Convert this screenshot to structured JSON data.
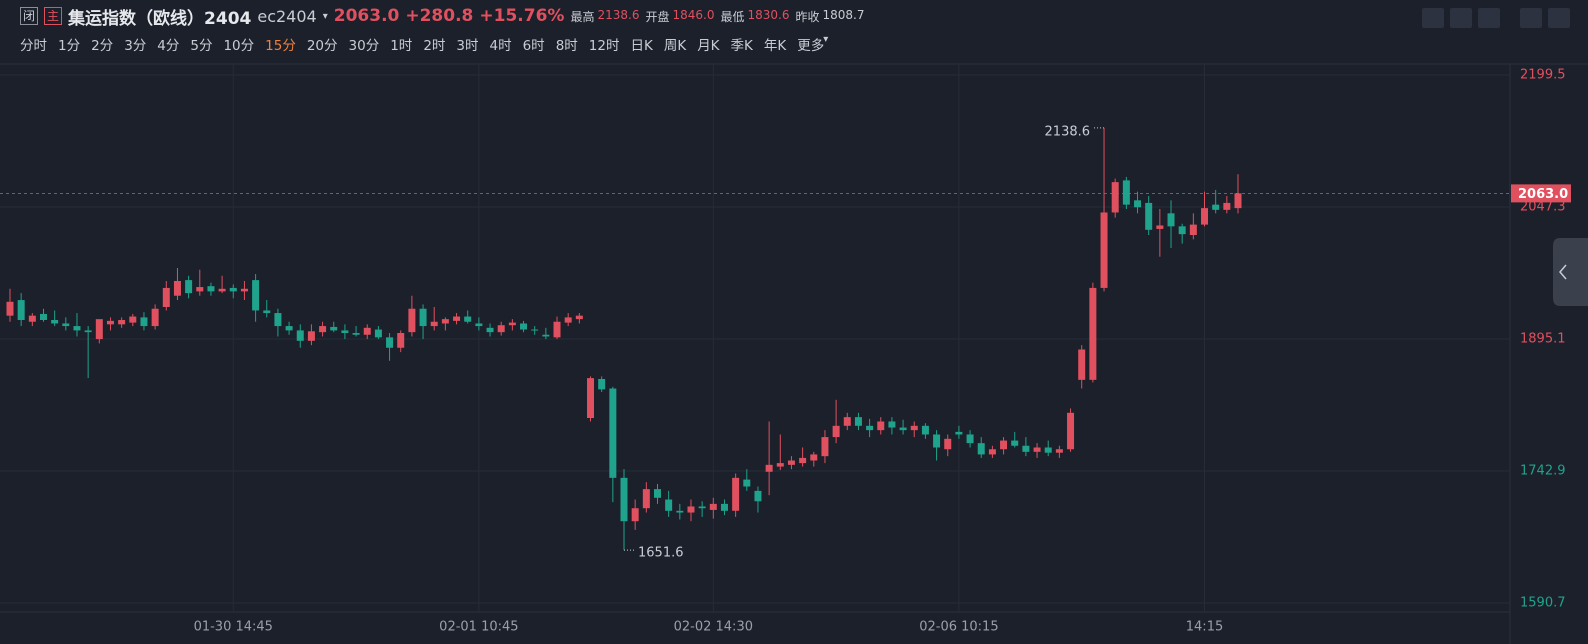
{
  "header": {
    "badges": [
      "闭",
      "主"
    ],
    "name": "集运指数（欧线）2404",
    "code": "ec2404",
    "price": "2063.0",
    "change": "+280.8",
    "pct": "+15.76%",
    "stats": [
      {
        "label": "最高",
        "value": "2138.6"
      },
      {
        "label": "开盘",
        "value": "1846.0"
      },
      {
        "label": "最低",
        "value": "1830.6"
      },
      {
        "label": "昨收",
        "value": "1808.7"
      }
    ],
    "periods": [
      "分时",
      "1分",
      "2分",
      "3分",
      "4分",
      "5分",
      "10分",
      "15分",
      "20分",
      "30分",
      "1时",
      "2时",
      "3时",
      "4时",
      "6时",
      "8时",
      "12时",
      "日K",
      "周K",
      "月K",
      "季K",
      "年K",
      "更多"
    ],
    "active_period": 7
  },
  "chart_data": {
    "type": "candlestick",
    "up_color": "#e0505e",
    "down_color": "#1fa38c",
    "prev_close": 1808.7,
    "ylim": [
      1590.7,
      2199.5
    ],
    "yticks": [
      1590.7,
      1742.9,
      1895.1,
      2047.3,
      2199.5
    ],
    "grid": true,
    "last_price": {
      "value": 2063,
      "label": "2063.0"
    },
    "categories": [
      null,
      null,
      null,
      null,
      null,
      null,
      null,
      null,
      null,
      null,
      null,
      null,
      null,
      null,
      null,
      null,
      null,
      null,
      null,
      null,
      "01-30 14:45",
      null,
      null,
      null,
      null,
      null,
      null,
      null,
      null,
      null,
      null,
      null,
      null,
      null,
      null,
      null,
      null,
      null,
      null,
      null,
      null,
      null,
      "02-01 10:45",
      null,
      null,
      null,
      null,
      null,
      null,
      null,
      null,
      null,
      null,
      null,
      null,
      null,
      null,
      null,
      null,
      null,
      null,
      null,
      null,
      "02-02 14:30",
      null,
      null,
      null,
      null,
      null,
      null,
      null,
      null,
      null,
      null,
      null,
      null,
      null,
      null,
      null,
      null,
      null,
      null,
      null,
      null,
      null,
      "02-06 10:15",
      null,
      null,
      null,
      null,
      null,
      null,
      null,
      null,
      null,
      null,
      null,
      null,
      null,
      null,
      null,
      null,
      null,
      null,
      null,
      null,
      null,
      "14:15",
      null,
      null,
      null
    ],
    "open": [
      1922,
      1940,
      1915,
      1924,
      1917,
      1913,
      1910,
      1905,
      1895,
      1912,
      1912,
      1914,
      1920,
      1910,
      1932,
      1945,
      1963,
      1950,
      1956,
      1950,
      1954,
      1950,
      1963,
      1928,
      1925,
      1910,
      1905,
      1893,
      1903,
      1909,
      1905,
      1902,
      1900,
      1906,
      1897,
      1885,
      1903,
      1930,
      1910,
      1913,
      1916,
      1921,
      1913,
      1908,
      1903,
      1911,
      1913,
      1906,
      1900,
      1897,
      1914,
      1918,
      1804,
      1849,
      1838,
      1735,
      1685,
      1700,
      1722,
      1710,
      1697,
      1695,
      1702,
      1698,
      1705,
      1697,
      1733,
      1720,
      1742,
      1748,
      1750,
      1752,
      1755,
      1760,
      1782,
      1795,
      1805,
      1795,
      1790,
      1800,
      1793,
      1790,
      1795,
      1785,
      1768,
      1788,
      1785,
      1775,
      1762,
      1768,
      1778,
      1772,
      1765,
      1770,
      1764,
      1768,
      1848,
      1848,
      1954,
      2041,
      2078,
      2055,
      2052,
      2022,
      2040,
      2025,
      2015,
      2027,
      2050,
      2044,
      2046
    ],
    "high": [
      1953,
      1948,
      1925,
      1930,
      1928,
      1920,
      1925,
      1910,
      1915,
      1920,
      1920,
      1924,
      1926,
      1935,
      1962,
      1977,
      1968,
      1975,
      1960,
      1968,
      1958,
      1962,
      1970,
      1940,
      1930,
      1915,
      1912,
      1912,
      1915,
      1915,
      1912,
      1910,
      1912,
      1910,
      1902,
      1905,
      1945,
      1935,
      1932,
      1920,
      1925,
      1928,
      1920,
      1913,
      1915,
      1918,
      1916,
      1910,
      1908,
      1921,
      1925,
      1925,
      1852,
      1852,
      1840,
      1745,
      1710,
      1730,
      1728,
      1720,
      1705,
      1710,
      1708,
      1712,
      1710,
      1740,
      1745,
      1725,
      1800,
      1785,
      1760,
      1770,
      1765,
      1790,
      1825,
      1810,
      1810,
      1803,
      1805,
      1805,
      1802,
      1800,
      1798,
      1790,
      1785,
      1795,
      1790,
      1782,
      1772,
      1782,
      1788,
      1782,
      1775,
      1778,
      1772,
      1815,
      1888,
      1960,
      2138.6,
      2080,
      2082,
      2065,
      2060,
      2045,
      2055,
      2028,
      2040,
      2065,
      2067,
      2060,
      2085
    ],
    "low": [
      1915,
      1910,
      1910,
      1915,
      1910,
      1905,
      1898,
      1850,
      1890,
      1905,
      1908,
      1910,
      1905,
      1906,
      1928,
      1940,
      1942,
      1945,
      1945,
      1948,
      1942,
      1940,
      1915,
      1920,
      1898,
      1900,
      1885,
      1888,
      1898,
      1903,
      1895,
      1898,
      1895,
      1895,
      1870,
      1880,
      1898,
      1895,
      1905,
      1905,
      1912,
      1913,
      1905,
      1898,
      1899,
      1905,
      1903,
      1900,
      1895,
      1895,
      1910,
      1913,
      1800,
      1834,
      1707,
      1651.6,
      1675,
      1695,
      1705,
      1690,
      1687,
      1685,
      1690,
      1688,
      1692,
      1690,
      1720,
      1695,
      1715,
      1744,
      1745,
      1748,
      1748,
      1752,
      1775,
      1790,
      1790,
      1782,
      1785,
      1785,
      1785,
      1782,
      1780,
      1755,
      1760,
      1780,
      1770,
      1758,
      1758,
      1762,
      1770,
      1760,
      1758,
      1760,
      1758,
      1765,
      1838,
      1845,
      1950,
      2035,
      2045,
      2040,
      2015,
      1990,
      2000,
      2005,
      2010,
      2025,
      2040,
      2040,
      2040
    ],
    "close": [
      1938,
      1917,
      1922,
      1917,
      1913,
      1910,
      1905,
      1903,
      1918,
      1916,
      1917,
      1921,
      1910,
      1930,
      1954,
      1962,
      1948,
      1955,
      1950,
      1953,
      1950,
      1953,
      1928,
      1925,
      1910,
      1905,
      1893,
      1904,
      1910,
      1905,
      1902,
      1900,
      1908,
      1897,
      1885,
      1902,
      1930,
      1910,
      1915,
      1918,
      1921,
      1915,
      1910,
      1903,
      1911,
      1914,
      1906,
      1905,
      1898,
      1915,
      1920,
      1922,
      1850,
      1837,
      1735,
      1685,
      1700,
      1722,
      1712,
      1697,
      1695,
      1702,
      1700,
      1705,
      1697,
      1735,
      1725,
      1708,
      1750,
      1752,
      1755,
      1758,
      1762,
      1782,
      1795,
      1805,
      1795,
      1790,
      1800,
      1793,
      1790,
      1795,
      1785,
      1770,
      1780,
      1785,
      1775,
      1762,
      1768,
      1778,
      1772,
      1765,
      1770,
      1764,
      1768,
      1810,
      1883,
      1954,
      2041,
      2076,
      2050,
      2047,
      2021,
      2026,
      2025,
      2016,
      2027,
      2046,
      2044,
      2052,
      2063
    ]
  }
}
